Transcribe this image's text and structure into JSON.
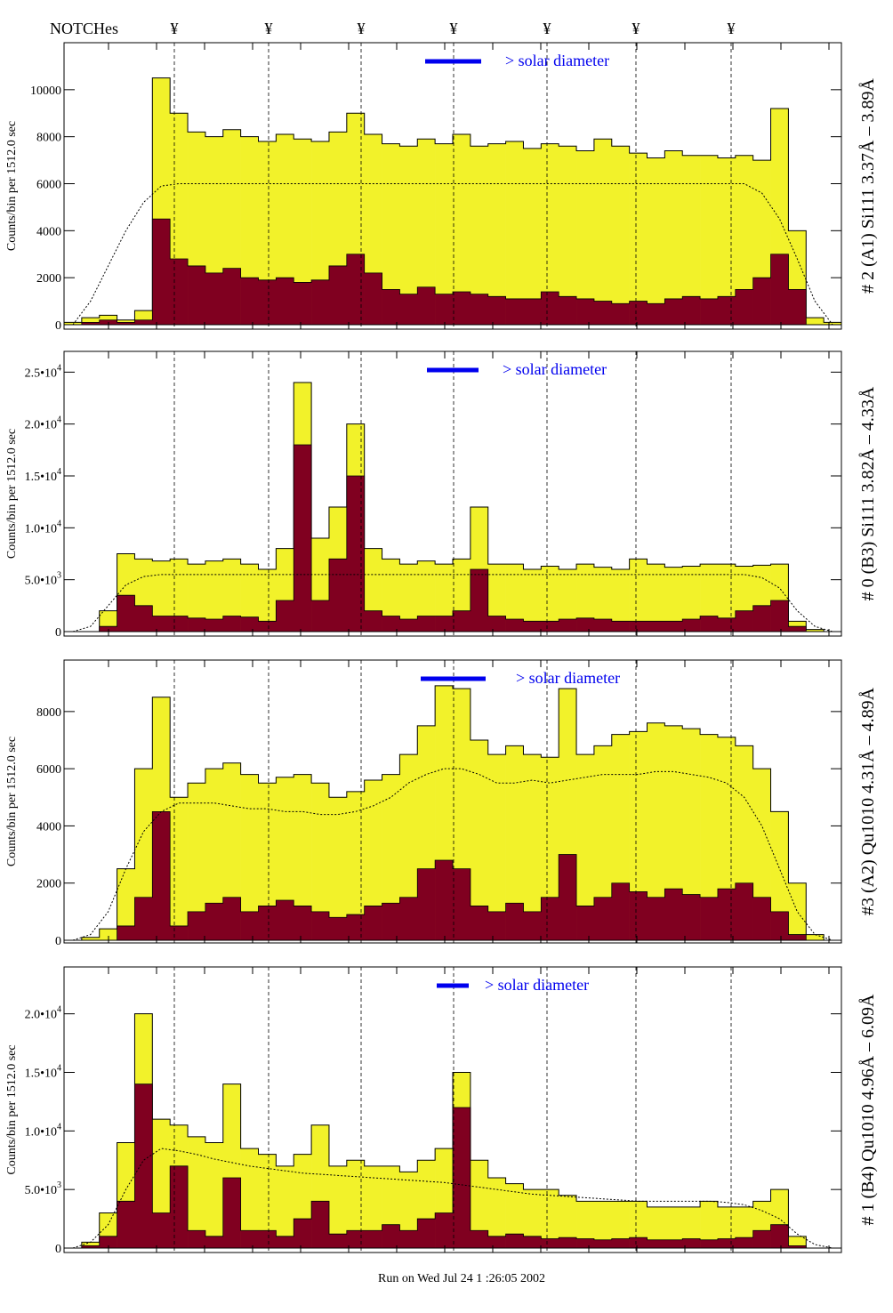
{
  "header": {
    "notches_label": "NOTCHes",
    "notch_symbol": "¥",
    "notch_count": 7
  },
  "footer": {
    "run_text": "Run on Wed Jul 24 1 :26:05 2002"
  },
  "colors": {
    "total": "#f2f22a",
    "selected": "#800020",
    "legend": "#0000ee",
    "outline": "#000000"
  },
  "chart_data": [
    {
      "type": "bar",
      "panel_label": "# 2 (A1) Si111  3.37Å – 3.89Å",
      "ylabel": "Counts/bin per   1512.0 sec",
      "legend_text": "> solar diameter",
      "ylim": [
        0,
        12000
      ],
      "yticks": [
        {
          "v": 0,
          "t": "0"
        },
        {
          "v": 2000,
          "t": "2000"
        },
        {
          "v": 4000,
          "t": "4000"
        },
        {
          "v": 6000,
          "t": "6000"
        },
        {
          "v": 8000,
          "t": "8000"
        },
        {
          "v": 10000,
          "t": "10000"
        }
      ],
      "total": [
        100,
        300,
        400,
        200,
        600,
        10500,
        9000,
        8200,
        8000,
        8300,
        8000,
        7800,
        8100,
        7900,
        7800,
        8200,
        9000,
        8100,
        7700,
        7600,
        7900,
        7700,
        8100,
        7600,
        7700,
        7800,
        7500,
        7700,
        7600,
        7400,
        7900,
        7600,
        7300,
        7100,
        7400,
        7200,
        7200,
        7100,
        7200,
        7000,
        9200,
        4000,
        300,
        100
      ],
      "selected": [
        0,
        100,
        200,
        100,
        200,
        4500,
        2800,
        2500,
        2200,
        2400,
        2000,
        1900,
        2000,
        1800,
        1900,
        2500,
        3000,
        2200,
        1500,
        1300,
        1600,
        1300,
        1400,
        1300,
        1200,
        1100,
        1100,
        1400,
        1200,
        1100,
        1000,
        900,
        1000,
        900,
        1100,
        1200,
        1100,
        1200,
        1500,
        2000,
        3000,
        1500,
        0,
        0
      ],
      "model": [
        0,
        1000,
        2500,
        4000,
        5200,
        5900,
        6000,
        6000,
        6000,
        6000,
        6000,
        6000,
        6000,
        6000,
        6000,
        6000,
        6000,
        6000,
        6000,
        6000,
        6000,
        6000,
        6000,
        6000,
        6000,
        6000,
        6000,
        6000,
        6000,
        6000,
        6000,
        6000,
        6000,
        6000,
        6000,
        6000,
        6000,
        6000,
        6000,
        5600,
        4500,
        2800,
        1000,
        0
      ]
    },
    {
      "type": "bar",
      "panel_label": "# 0 (B3) Si111  3.82Å – 4.33Å",
      "ylabel": "Counts/bin per   1512.0 sec",
      "legend_text": "> solar diameter",
      "ylim": [
        0,
        27000
      ],
      "yticks": [
        {
          "v": 0,
          "t": "0"
        },
        {
          "v": 5000,
          "t": "5.0•10",
          "e": "3"
        },
        {
          "v": 10000,
          "t": "1.0•10",
          "e": "4"
        },
        {
          "v": 15000,
          "t": "1.5•10",
          "e": "4"
        },
        {
          "v": 20000,
          "t": "2.0•10",
          "e": "4"
        },
        {
          "v": 25000,
          "t": "2.5•10",
          "e": "4"
        }
      ],
      "total": [
        0,
        0,
        2000,
        7500,
        7000,
        6800,
        7000,
        6500,
        6800,
        7000,
        6500,
        6000,
        8000,
        24000,
        9000,
        12000,
        20000,
        8000,
        7000,
        6500,
        6800,
        6500,
        7000,
        12000,
        6500,
        6500,
        6000,
        6300,
        6000,
        6500,
        6200,
        6000,
        7000,
        6500,
        6200,
        6300,
        6500,
        6500,
        6300,
        6400,
        6500,
        1000,
        200,
        0
      ],
      "selected": [
        0,
        0,
        500,
        3500,
        2500,
        1500,
        1500,
        1300,
        1200,
        1500,
        1400,
        1000,
        3000,
        18000,
        3000,
        7000,
        15000,
        2000,
        1500,
        1200,
        1500,
        1500,
        2000,
        6000,
        1500,
        1200,
        1000,
        1000,
        1200,
        1300,
        1200,
        1000,
        1000,
        1000,
        1000,
        1200,
        1500,
        1300,
        2000,
        2500,
        3000,
        500,
        0,
        0
      ],
      "model": [
        0,
        500,
        2500,
        4500,
        5300,
        5500,
        5500,
        5500,
        5500,
        5500,
        5500,
        5500,
        5500,
        5500,
        5500,
        5500,
        5500,
        5500,
        5500,
        5500,
        5500,
        5500,
        5500,
        5500,
        5500,
        5500,
        5500,
        5500,
        5500,
        5500,
        5500,
        5500,
        5500,
        5500,
        5500,
        5500,
        5500,
        5500,
        5500,
        5200,
        4200,
        2000,
        500,
        0
      ]
    },
    {
      "type": "bar",
      "panel_label": "#3 (A2) Qu1010  4.31Å – 4.89Å",
      "ylabel": "Counts/bin per   1512.0 sec",
      "legend_text": "> solar diameter",
      "ylim": [
        0,
        9800
      ],
      "yticks": [
        {
          "v": 0,
          "t": "0"
        },
        {
          "v": 2000,
          "t": "2000"
        },
        {
          "v": 4000,
          "t": "4000"
        },
        {
          "v": 6000,
          "t": "6000"
        },
        {
          "v": 8000,
          "t": "8000"
        }
      ],
      "total": [
        0,
        100,
        400,
        2500,
        6000,
        8500,
        5000,
        5500,
        6000,
        6200,
        5800,
        5500,
        5700,
        5800,
        5500,
        5000,
        5200,
        5600,
        5800,
        6500,
        7500,
        8900,
        8800,
        7000,
        6500,
        6800,
        6500,
        6400,
        8800,
        6500,
        6800,
        7200,
        7300,
        7600,
        7500,
        7400,
        7200,
        7100,
        6800,
        6000,
        4500,
        2000,
        200,
        0
      ],
      "selected": [
        0,
        0,
        0,
        500,
        1500,
        4500,
        500,
        1000,
        1300,
        1500,
        1000,
        1200,
        1400,
        1200,
        1000,
        800,
        900,
        1200,
        1300,
        1500,
        2500,
        2800,
        2500,
        1200,
        1000,
        1300,
        1000,
        1500,
        3000,
        1200,
        1500,
        2000,
        1700,
        1500,
        1800,
        1600,
        1500,
        1800,
        2000,
        1500,
        1000,
        200,
        0,
        0
      ],
      "model": [
        0,
        200,
        1000,
        2500,
        3800,
        4500,
        4800,
        4800,
        4800,
        4700,
        4600,
        4600,
        4500,
        4500,
        4400,
        4400,
        4500,
        4700,
        5000,
        5500,
        5800,
        6000,
        6000,
        5800,
        5500,
        5500,
        5600,
        5500,
        5600,
        5700,
        5800,
        5800,
        5800,
        5900,
        5900,
        5800,
        5700,
        5500,
        5000,
        4000,
        2500,
        1000,
        200,
        0
      ]
    },
    {
      "type": "bar",
      "panel_label": "# 1 (B4) Qu1010 4.96Å – 6.09Å",
      "ylabel": "Counts/bin per   1512.0 sec",
      "legend_text": "> solar diameter",
      "ylim": [
        0,
        24000
      ],
      "yticks": [
        {
          "v": 0,
          "t": "0"
        },
        {
          "v": 5000,
          "t": "5.0•10",
          "e": "3"
        },
        {
          "v": 10000,
          "t": "1.0•10",
          "e": "4"
        },
        {
          "v": 15000,
          "t": "1.5•10",
          "e": "4"
        },
        {
          "v": 20000,
          "t": "2.0•10",
          "e": "4"
        }
      ],
      "total": [
        0,
        500,
        3000,
        9000,
        20000,
        11000,
        10500,
        9500,
        9000,
        14000,
        8500,
        8000,
        7000,
        8000,
        10500,
        7000,
        7500,
        7000,
        7000,
        6500,
        7500,
        8500,
        15000,
        7500,
        6000,
        5500,
        5000,
        5000,
        4500,
        4000,
        4000,
        4000,
        4000,
        3500,
        3500,
        3500,
        4000,
        3500,
        3500,
        4000,
        5000,
        1000,
        0,
        0
      ],
      "selected": [
        0,
        200,
        1000,
        4000,
        14000,
        3000,
        7000,
        1500,
        1000,
        6000,
        1500,
        1500,
        1000,
        2500,
        4000,
        1200,
        1500,
        1500,
        2000,
        1500,
        2500,
        3000,
        12000,
        1500,
        1000,
        1200,
        1000,
        800,
        900,
        800,
        700,
        800,
        900,
        700,
        700,
        800,
        700,
        800,
        900,
        1500,
        2000,
        200,
        0,
        0
      ],
      "model": [
        0,
        500,
        2000,
        5000,
        7500,
        8500,
        8300,
        8000,
        7600,
        7300,
        7000,
        6800,
        6600,
        6400,
        6300,
        6200,
        6100,
        6000,
        5900,
        5800,
        5700,
        5600,
        5400,
        5200,
        5000,
        4800,
        4600,
        4500,
        4400,
        4300,
        4200,
        4100,
        4000,
        4000,
        4000,
        4000,
        4000,
        3900,
        3700,
        3200,
        2500,
        1200,
        300,
        0
      ]
    }
  ]
}
